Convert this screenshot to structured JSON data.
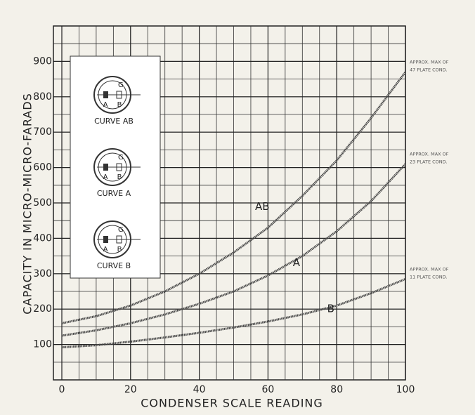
{
  "chart_data": {
    "type": "line",
    "x_label": "CONDENSER SCALE READING",
    "y_label": "CAPACITY IN MICRO-MICRO-FARADS",
    "x": [
      0,
      10,
      20,
      30,
      40,
      50,
      60,
      70,
      80,
      90,
      100
    ],
    "series": [
      {
        "name": "AB",
        "color": "#4a4a4a",
        "values": [
          160,
          180,
          210,
          250,
          300,
          360,
          430,
          520,
          620,
          740,
          870
        ]
      },
      {
        "name": "A",
        "color": "#4a4a4a",
        "values": [
          125,
          140,
          160,
          185,
          215,
          250,
          295,
          350,
          420,
          505,
          610
        ]
      },
      {
        "name": "B",
        "color": "#4a4a4a",
        "values": [
          92,
          98,
          108,
          120,
          133,
          148,
          165,
          185,
          210,
          245,
          285
        ]
      }
    ],
    "xlim": [
      0,
      100
    ],
    "xticks": [
      0,
      20,
      40,
      60,
      80,
      100
    ],
    "ylim": [
      0,
      1000
    ],
    "yticks": [
      100,
      200,
      300,
      400,
      500,
      600,
      700,
      800,
      900
    ],
    "grid": true,
    "annotations": [
      {
        "lines": [
          "APPROX. MAX OF",
          "47 PLATE COND."
        ]
      },
      {
        "lines": [
          "APPROX. MAX OF",
          "23 PLATE COND."
        ]
      },
      {
        "lines": [
          "APPROX. MAX OF",
          "11 PLATE COND."
        ]
      }
    ],
    "inset": [
      {
        "label": "CURVE AB",
        "pins": [
          "G",
          "A",
          "B"
        ]
      },
      {
        "label": "CURVE A",
        "pins": [
          "G",
          "A",
          "B"
        ]
      },
      {
        "label": "CURVE B",
        "pins": [
          "G",
          "A",
          "B"
        ]
      }
    ]
  }
}
